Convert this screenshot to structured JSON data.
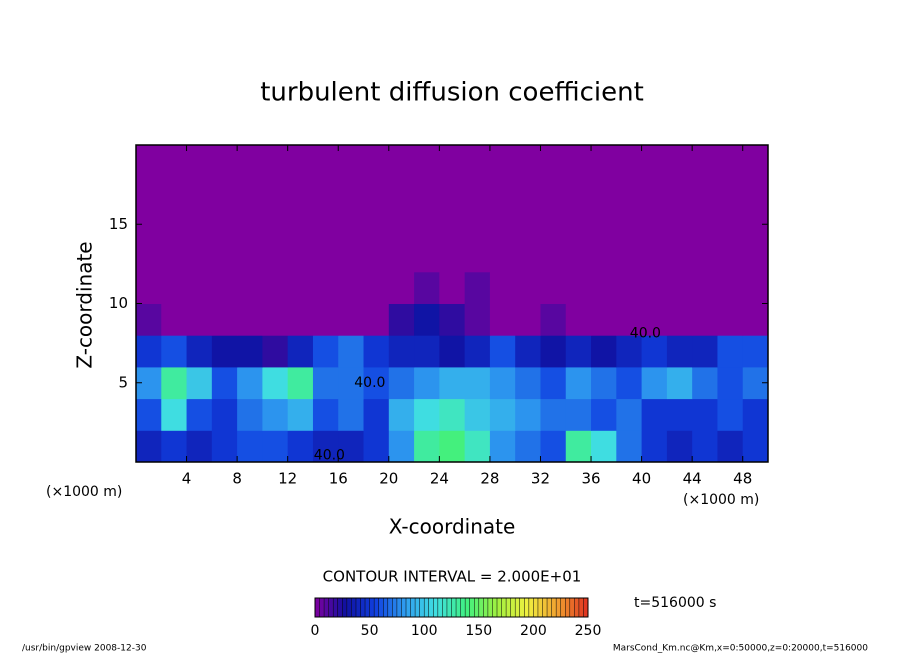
{
  "chart_data": {
    "type": "heatmap",
    "title": "turbulent diffusion coefficient",
    "xlabel": "X-coordinate",
    "ylabel": "Z-coordinate",
    "x_unit_left": "(×1000 m)",
    "x_unit_right": "(×1000 m)",
    "x": [
      1,
      3,
      5,
      7,
      9,
      11,
      13,
      15,
      17,
      19,
      21,
      23,
      25,
      27,
      29,
      31,
      33,
      35,
      37,
      39,
      41,
      43,
      45,
      47,
      49
    ],
    "y": [
      1,
      3,
      5,
      7,
      9,
      11,
      13,
      15,
      17,
      19
    ],
    "z": [
      [
        40,
        50,
        40,
        50,
        60,
        60,
        50,
        40,
        40,
        50,
        80,
        130,
        140,
        120,
        80,
        70,
        60,
        130,
        110,
        70,
        50,
        40,
        50,
        40,
        50
      ],
      [
        60,
        110,
        60,
        50,
        70,
        80,
        90,
        60,
        70,
        50,
        90,
        110,
        120,
        100,
        90,
        80,
        70,
        70,
        60,
        70,
        50,
        50,
        50,
        60,
        50
      ],
      [
        80,
        130,
        100,
        60,
        80,
        110,
        130,
        70,
        70,
        60,
        70,
        80,
        90,
        90,
        80,
        70,
        60,
        80,
        70,
        60,
        80,
        90,
        70,
        60,
        70
      ],
      [
        50,
        60,
        40,
        30,
        30,
        20,
        40,
        60,
        70,
        50,
        40,
        40,
        30,
        40,
        60,
        40,
        30,
        40,
        30,
        40,
        50,
        40,
        40,
        60,
        60
      ],
      [
        10,
        0,
        0,
        0,
        0,
        0,
        0,
        0,
        0,
        0,
        20,
        30,
        20,
        10,
        0,
        0,
        10,
        0,
        0,
        0,
        0,
        0,
        0,
        0,
        0
      ],
      [
        0,
        0,
        0,
        0,
        0,
        0,
        0,
        0,
        0,
        0,
        0,
        10,
        0,
        10,
        0,
        0,
        0,
        0,
        0,
        0,
        0,
        0,
        0,
        0,
        0
      ],
      [
        0,
        0,
        0,
        0,
        0,
        0,
        0,
        0,
        0,
        0,
        0,
        0,
        0,
        0,
        0,
        0,
        0,
        0,
        0,
        0,
        0,
        0,
        0,
        0,
        0
      ],
      [
        0,
        0,
        0,
        0,
        0,
        0,
        0,
        0,
        0,
        0,
        0,
        0,
        0,
        0,
        0,
        0,
        0,
        0,
        0,
        0,
        0,
        0,
        0,
        0,
        0
      ],
      [
        0,
        0,
        0,
        0,
        0,
        0,
        0,
        0,
        0,
        0,
        0,
        0,
        0,
        0,
        0,
        0,
        0,
        0,
        0,
        0,
        0,
        0,
        0,
        0,
        0
      ],
      [
        0,
        0,
        0,
        0,
        0,
        0,
        0,
        0,
        0,
        0,
        0,
        0,
        0,
        0,
        0,
        0,
        0,
        0,
        0,
        0,
        0,
        0,
        0,
        0,
        0
      ]
    ],
    "xlim": [
      0,
      50
    ],
    "ylim": [
      0,
      20
    ],
    "xticks": [
      4,
      8,
      12,
      16,
      20,
      24,
      28,
      32,
      36,
      40,
      44,
      48
    ],
    "yticks": [
      5,
      10,
      15
    ],
    "clim": [
      0,
      250
    ],
    "cticks": [
      0,
      50,
      100,
      150,
      200,
      250
    ],
    "colormap": [
      "#8000a0",
      "#1010a0",
      "#1040e0",
      "#30a0f0",
      "#40e0e0",
      "#40f080",
      "#a0f040",
      "#f0f040",
      "#f0a030",
      "#e03020"
    ],
    "contour_labels": [
      {
        "text": "40.0",
        "x": 18.5,
        "z": 5
      },
      {
        "text": "40.0",
        "x": 40.3,
        "z": 8.1
      },
      {
        "text": "40.0",
        "x": 15.3,
        "z": 0.4
      }
    ],
    "contour_interval": "CONTOUR INTERVAL = 2.000E+01",
    "time_label": "t=516000 s",
    "footer_left": "/usr/bin/gpview   2008-12-30",
    "footer_right": "MarsCond_Km.nc@Km,x=0:50000,z=0:20000,t=516000"
  }
}
